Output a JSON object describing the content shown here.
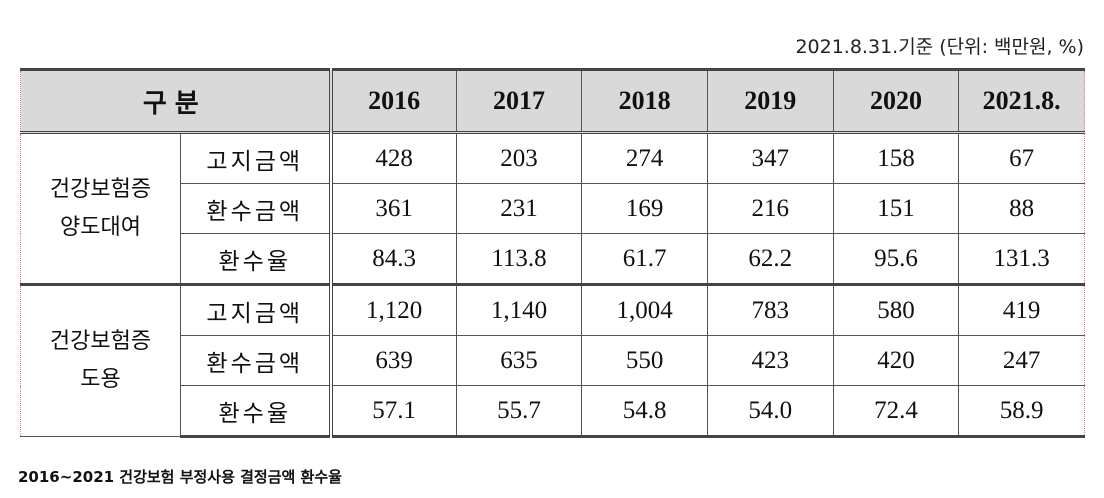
{
  "note": "2021.8.31.기준 (단위: 백만원, %)",
  "table": {
    "header": [
      "구분",
      "2016",
      "2017",
      "2018",
      "2019",
      "2020",
      "2021.8."
    ],
    "groups": [
      {
        "label": [
          "건강보험증",
          "양도대여"
        ],
        "rows": [
          {
            "label": "고지금액",
            "values": [
              "428",
              "203",
              "274",
              "347",
              "158",
              "67"
            ]
          },
          {
            "label": "환수금액",
            "values": [
              "361",
              "231",
              "169",
              "216",
              "151",
              "88"
            ]
          },
          {
            "label": "환수율",
            "values": [
              "84.3",
              "113.8",
              "61.7",
              "62.2",
              "95.6",
              "131.3"
            ]
          }
        ]
      },
      {
        "label": [
          "건강보험증",
          "도용"
        ],
        "rows": [
          {
            "label": "고지금액",
            "values": [
              "1,120",
              "1,140",
              "1,004",
              "783",
              "580",
              "419"
            ]
          },
          {
            "label": "환수금액",
            "values": [
              "639",
              "635",
              "550",
              "423",
              "420",
              "247"
            ]
          },
          {
            "label": "환수율",
            "values": [
              "57.1",
              "55.7",
              "54.8",
              "54.0",
              "72.4",
              "58.9"
            ]
          }
        ]
      }
    ]
  },
  "caption": "2016~2021 건강보험 부정사용 결정금액 환수율"
}
